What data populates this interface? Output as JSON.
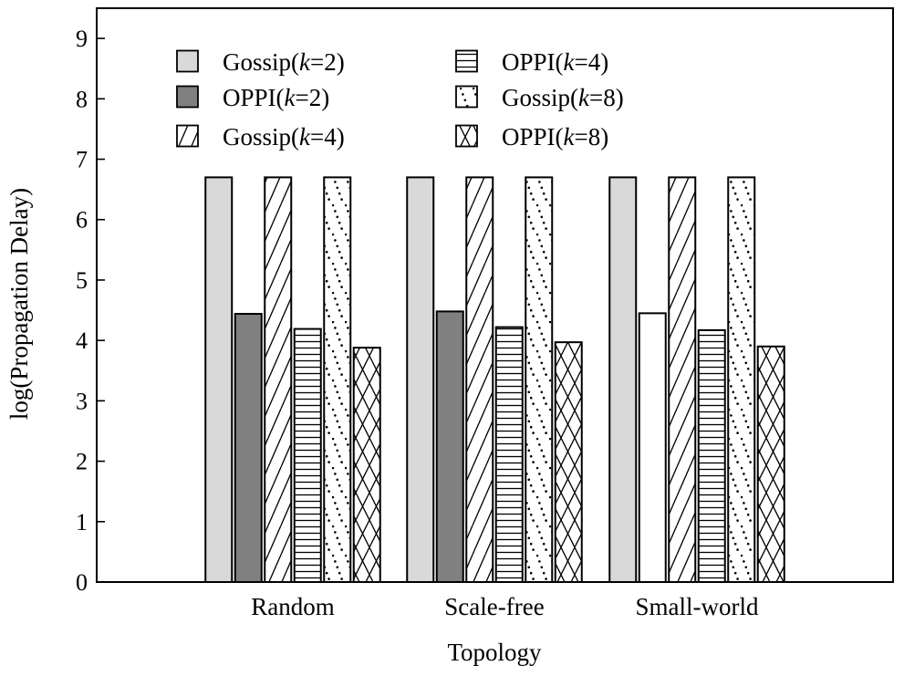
{
  "chart_data": {
    "type": "bar",
    "title": "",
    "xlabel": "Topology",
    "ylabel": "log(Propagation Delay)",
    "ylim": [
      0,
      9.5
    ],
    "yticks": [
      0,
      1,
      2,
      3,
      4,
      5,
      6,
      7,
      8,
      9
    ],
    "grid": false,
    "legend_position": "top-left",
    "categories": [
      "Random",
      "Scale-free",
      "Small-world"
    ],
    "series": [
      {
        "name": "Gossip(",
        "k": "k",
        "suffix": "=2)",
        "pattern": "solid-light",
        "values": [
          6.7,
          6.7,
          6.7
        ]
      },
      {
        "name": "OPPI(",
        "k": "k",
        "suffix": "=2)",
        "pattern": "solid-dark",
        "values": [
          4.44,
          4.48,
          4.45
        ]
      },
      {
        "name": "Gossip(",
        "k": "k",
        "suffix": "=4)",
        "pattern": "diagonal",
        "values": [
          6.7,
          6.7,
          6.7
        ]
      },
      {
        "name": "OPPI(",
        "k": "k",
        "suffix": "=4)",
        "pattern": "horizontal",
        "values": [
          4.19,
          4.22,
          4.17
        ]
      },
      {
        "name": "Gossip(",
        "k": "k",
        "suffix": "=8)",
        "pattern": "dots",
        "values": [
          6.7,
          6.7,
          6.7
        ]
      },
      {
        "name": "OPPI(",
        "k": "k",
        "suffix": "=8)",
        "pattern": "crosshatch",
        "values": [
          3.88,
          3.97,
          3.9
        ]
      }
    ],
    "colors": {
      "solid-light": "#d9d9d9",
      "solid-dark": "#808080",
      "outline": "#000000",
      "background": "#ffffff"
    }
  }
}
